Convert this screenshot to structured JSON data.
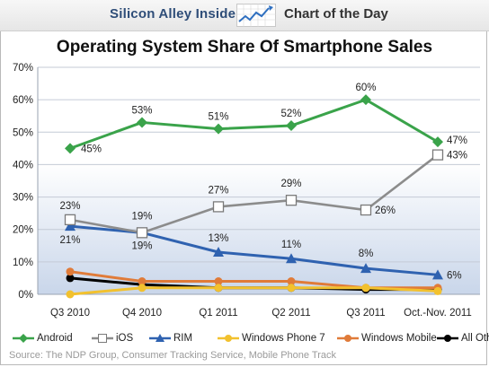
{
  "header": {
    "brand": "Silicon Alley Insider",
    "section": "Chart of the Day",
    "logo_icon": "trend-chart-icon"
  },
  "source": "Source: The NDP Group, Consumer Tracking Service, Mobile Phone Track",
  "chart_data": {
    "type": "line",
    "title": "Operating System Share Of Smartphone Sales",
    "xlabel": "",
    "ylabel": "",
    "categories": [
      "Q3 2010",
      "Q4 2010",
      "Q1 2011",
      "Q2 2011",
      "Q3 2011",
      "Oct.-Nov. 2011"
    ],
    "ylim": [
      0,
      70
    ],
    "yticks": [
      0,
      10,
      20,
      30,
      40,
      50,
      60,
      70
    ],
    "ytick_labels": [
      "0%",
      "10%",
      "20%",
      "30%",
      "40%",
      "50%",
      "60%",
      "70%"
    ],
    "grid": true,
    "legend_position": "bottom",
    "series": [
      {
        "name": "Android",
        "color": "#3aa34a",
        "marker": "diamond",
        "values": [
          45,
          53,
          51,
          52,
          60,
          47
        ],
        "labels": [
          "45%",
          "53%",
          "51%",
          "52%",
          "60%",
          "47%"
        ]
      },
      {
        "name": "iOS",
        "color": "#8c8c8c",
        "marker": "square-open",
        "values": [
          23,
          19,
          27,
          29,
          26,
          43
        ],
        "labels": [
          "23%",
          "19%",
          "27%",
          "29%",
          "26%",
          "43%"
        ]
      },
      {
        "name": "RIM",
        "color": "#2f62b0",
        "marker": "triangle",
        "values": [
          21,
          19,
          13,
          11,
          8,
          6
        ],
        "labels": [
          "21%",
          "19%",
          "13%",
          "11%",
          "8%",
          "6%"
        ]
      },
      {
        "name": "Windows Phone 7",
        "color": "#f2c12e",
        "marker": "circle",
        "values": [
          0,
          2,
          2,
          2,
          2,
          1
        ],
        "labels": []
      },
      {
        "name": "Windows Mobile",
        "color": "#e07b39",
        "marker": "circle",
        "values": [
          7,
          4,
          4,
          4,
          2,
          2
        ],
        "labels": []
      },
      {
        "name": "All Others",
        "color": "#000000",
        "marker": "circle",
        "values": [
          5,
          3,
          2,
          2,
          1.5,
          1.5
        ],
        "labels": []
      }
    ]
  }
}
